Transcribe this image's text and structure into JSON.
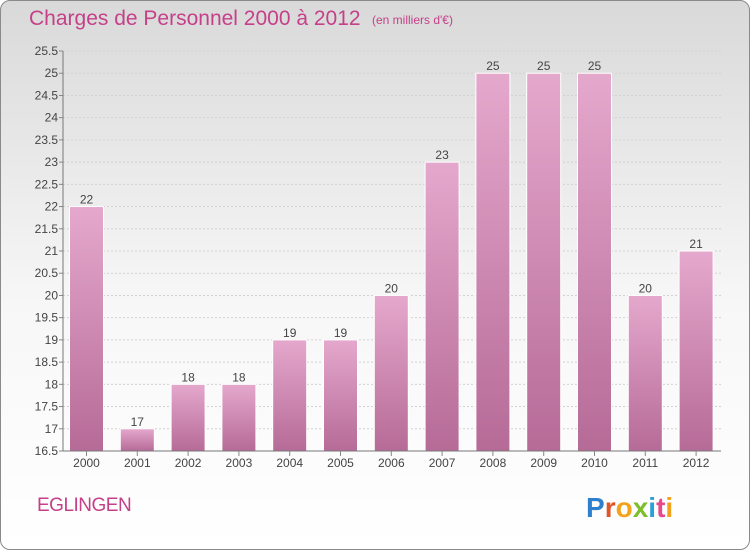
{
  "header": {
    "title": "Charges de Personnel 2000 à 2012",
    "subtitle": "(en milliers d'€)"
  },
  "footer": {
    "commune": "EGLINGEN",
    "logo_text": "Proxiti"
  },
  "colors": {
    "accent": "#c54089",
    "bar_top": "#e5a8cd",
    "bar_bottom": "#b66b97"
  },
  "chart_data": {
    "type": "bar",
    "title": "Charges de Personnel 2000 à 2012",
    "subtitle": "(en milliers d'€)",
    "xlabel": "",
    "ylabel": "",
    "categories": [
      "2000",
      "2001",
      "2002",
      "2003",
      "2004",
      "2005",
      "2006",
      "2007",
      "2008",
      "2009",
      "2010",
      "2011",
      "2012"
    ],
    "values": [
      22,
      17,
      18,
      18,
      19,
      19,
      20,
      23,
      25,
      25,
      25,
      20,
      21
    ],
    "data_labels": [
      "22",
      "17",
      "18",
      "18",
      "19",
      "19",
      "20",
      "23",
      "25",
      "25",
      "25",
      "20",
      "21"
    ],
    "ylim": [
      16.5,
      25.5
    ],
    "yticks": [
      "16.5",
      "17",
      "17.5",
      "18",
      "18.5",
      "19",
      "19.5",
      "20",
      "20.5",
      "21",
      "21.5",
      "22",
      "22.5",
      "23",
      "23.5",
      "24",
      "24.5",
      "25",
      "25.5"
    ],
    "grid": true,
    "legend": "none"
  }
}
